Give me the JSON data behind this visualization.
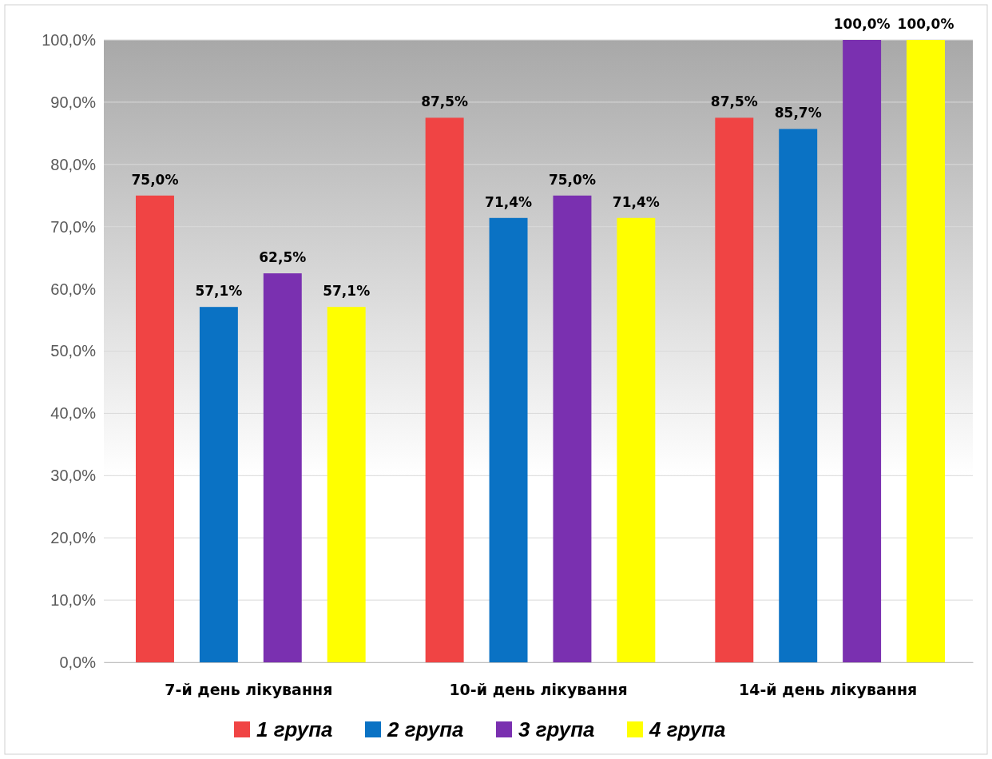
{
  "chart_data": {
    "type": "bar",
    "categories": [
      "7-й день лікування",
      "10-й день лікування",
      "14-й день лікування"
    ],
    "series": [
      {
        "name": "1 група",
        "color": "#f04444",
        "values": [
          75.0,
          87.5,
          87.5
        ],
        "value_labels": [
          "75,0%",
          "87,5%",
          "87,5%"
        ]
      },
      {
        "name": "2 група",
        "color": "#0a72c4",
        "values": [
          57.1,
          71.4,
          85.7
        ],
        "value_labels": [
          "57,1%",
          "71,4%",
          "85,7%"
        ]
      },
      {
        "name": "3 група",
        "color": "#7a30b0",
        "values": [
          62.5,
          75.0,
          100.0
        ],
        "value_labels": [
          "62,5%",
          "75,0%",
          "100,0%"
        ]
      },
      {
        "name": "4 група",
        "color": "#ffff00",
        "values": [
          57.1,
          71.4,
          100.0
        ],
        "value_labels": [
          "57,1%",
          "71,4%",
          "100,0%"
        ]
      }
    ],
    "ylim": [
      0,
      100
    ],
    "yticks": [
      {
        "value": 0,
        "label": "0,0%"
      },
      {
        "value": 10,
        "label": "10,0%"
      },
      {
        "value": 20,
        "label": "20,0%"
      },
      {
        "value": 30,
        "label": "30,0%"
      },
      {
        "value": 40,
        "label": "40,0%"
      },
      {
        "value": 50,
        "label": "50,0%"
      },
      {
        "value": 60,
        "label": "60,0%"
      },
      {
        "value": 70,
        "label": "70,0%"
      },
      {
        "value": 80,
        "label": "80,0%"
      },
      {
        "value": 90,
        "label": "90,0%"
      },
      {
        "value": 100,
        "label": "100,0%"
      }
    ],
    "grid": "y",
    "legend": "bottom"
  }
}
